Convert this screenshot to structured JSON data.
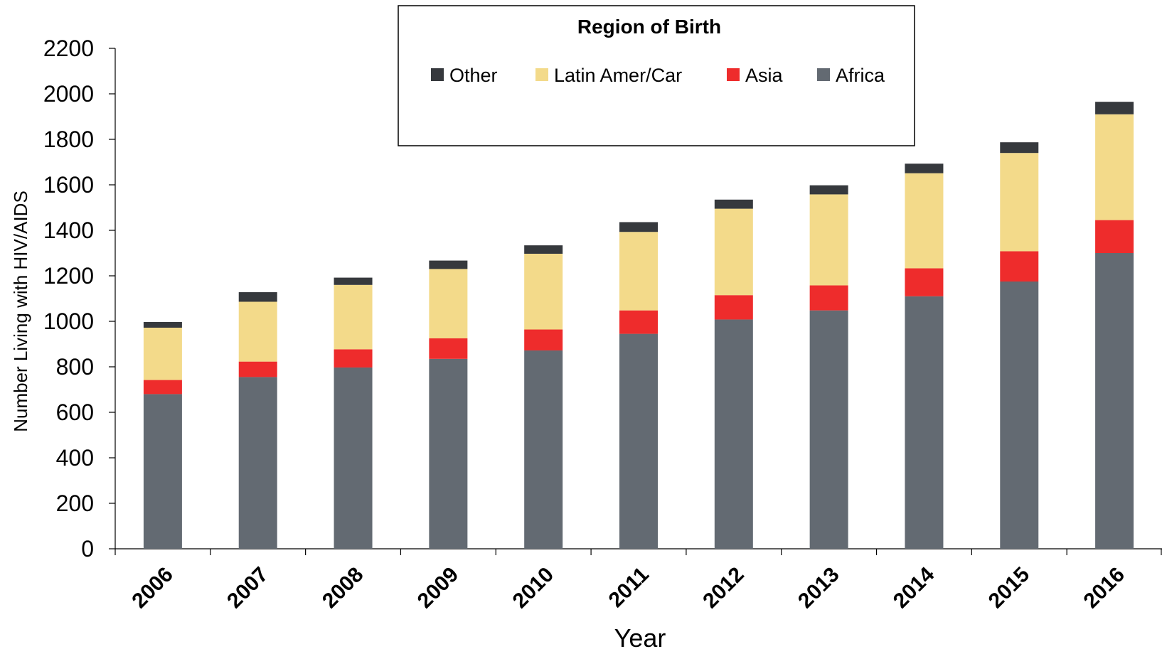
{
  "chart_data": {
    "type": "bar",
    "stacked": true,
    "categories": [
      "2006",
      "2007",
      "2008",
      "2009",
      "2010",
      "2011",
      "2012",
      "2013",
      "2014",
      "2015",
      "2016"
    ],
    "series": [
      {
        "name": "Africa",
        "color": "#636a72",
        "values": [
          680,
          755,
          797,
          835,
          872,
          945,
          1008,
          1048,
          1110,
          1175,
          1300
        ]
      },
      {
        "name": "Asia",
        "color": "#ee2c2c",
        "values": [
          62,
          68,
          80,
          90,
          92,
          103,
          107,
          110,
          123,
          133,
          145
        ]
      },
      {
        "name": "Latin Amer/Car",
        "color": "#f3da8a",
        "values": [
          230,
          263,
          283,
          305,
          333,
          345,
          380,
          400,
          418,
          432,
          465
        ]
      },
      {
        "name": "Other",
        "color": "#36393d",
        "values": [
          25,
          42,
          32,
          37,
          37,
          43,
          40,
          40,
          42,
          47,
          55
        ]
      }
    ],
    "legend": {
      "title": "Region of Birth",
      "order": [
        "Other",
        "Latin Amer/Car",
        "Asia",
        "Africa"
      ],
      "placement": "top-center"
    },
    "title": "",
    "xlabel": "Year",
    "ylabel": "Number Living with HIV/AIDS",
    "ylim": [
      0,
      2200
    ],
    "yticks": [
      0,
      200,
      400,
      600,
      800,
      1000,
      1200,
      1400,
      1600,
      1800,
      2000,
      2200
    ],
    "grid": false
  }
}
